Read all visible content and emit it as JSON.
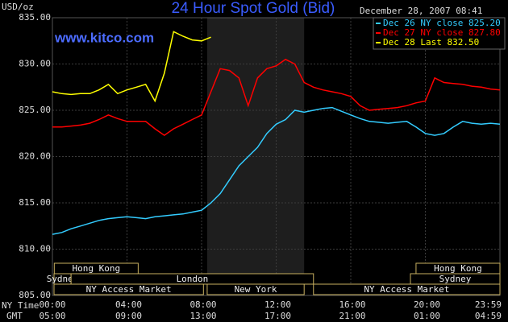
{
  "chart_data": {
    "type": "line",
    "title": "24 Hour Spot Gold (Bid)",
    "ylabel": "USD/oz",
    "timestamp": "December 28, 2007 08:41",
    "watermark": "www.kitco.com",
    "x_axis_names": [
      "NY Time",
      "GMT"
    ],
    "x": [
      0,
      0.5,
      1,
      1.5,
      2,
      2.5,
      3,
      3.5,
      4,
      4.5,
      5,
      5.5,
      6,
      6.5,
      7,
      7.5,
      8,
      8.5,
      9,
      9.5,
      10,
      10.5,
      11,
      11.5,
      12,
      12.5,
      13,
      13.5,
      14,
      14.5,
      15,
      15.5,
      16,
      16.5,
      17,
      17.5,
      18,
      18.5,
      19,
      19.5,
      20,
      20.5,
      21,
      21.5,
      22,
      22.5,
      23,
      23.5,
      24
    ],
    "xlim": [
      0,
      24
    ],
    "xticks": [
      {
        "value": 0,
        "label": "00:00"
      },
      {
        "value": 4,
        "label": "04:00"
      },
      {
        "value": 8,
        "label": "08:00"
      },
      {
        "value": 12,
        "label": "12:00"
      },
      {
        "value": 16,
        "label": "16:00"
      },
      {
        "value": 20,
        "label": "20:00"
      },
      {
        "value": 24,
        "label": "23:59"
      }
    ],
    "x2_labels": [
      "05:00",
      "09:00",
      "13:00",
      "17:00",
      "21:00",
      "01:00",
      "04:59"
    ],
    "ylim": [
      805,
      835
    ],
    "yticks": [
      {
        "value": 805,
        "label": "805.00"
      },
      {
        "value": 810,
        "label": "810.00"
      },
      {
        "value": 815,
        "label": "815.00"
      },
      {
        "value": 820,
        "label": "820.00"
      },
      {
        "value": 825,
        "label": "825.00"
      },
      {
        "value": 830,
        "label": "830.00"
      },
      {
        "value": 835,
        "label": "835.00"
      }
    ],
    "grid": true,
    "shade_xlim": [
      8.3,
      13.5
    ],
    "series": [
      {
        "name": "Dec 26 NY close 825.20",
        "color": "#33ccff",
        "values": [
          811.6,
          811.8,
          812.2,
          812.5,
          812.8,
          813.1,
          813.3,
          813.4,
          813.5,
          813.4,
          813.3,
          813.5,
          813.6,
          813.7,
          813.8,
          814.0,
          814.2,
          815.0,
          816.0,
          817.5,
          819.0,
          820.0,
          821.0,
          822.5,
          823.5,
          824.0,
          825.0,
          824.8,
          825.0,
          825.2,
          825.3,
          824.9,
          824.5,
          824.1,
          823.8,
          823.7,
          823.6,
          823.7,
          823.8,
          823.2,
          822.5,
          822.3,
          822.5,
          823.2,
          823.8,
          823.6,
          823.5,
          823.6,
          823.5
        ]
      },
      {
        "name": "Dec 27 NY close 827.80",
        "color": "#ff0000",
        "values": [
          823.2,
          823.2,
          823.3,
          823.4,
          823.6,
          824.0,
          824.5,
          824.1,
          823.8,
          823.8,
          823.8,
          823.0,
          822.3,
          823.0,
          823.5,
          824.0,
          824.5,
          827.0,
          829.5,
          829.3,
          828.5,
          825.5,
          828.5,
          829.5,
          829.8,
          830.5,
          830.0,
          828.0,
          827.5,
          827.2,
          827.0,
          826.8,
          826.5,
          825.5,
          825.0,
          825.1,
          825.2,
          825.3,
          825.5,
          825.8,
          826.0,
          828.5,
          828.0,
          827.9,
          827.8,
          827.6,
          827.5,
          827.3,
          827.2
        ]
      },
      {
        "name": "Dec 28 Last 832.50",
        "color": "#ffff00",
        "values": [
          827.0,
          826.8,
          826.7,
          826.8,
          826.8,
          827.2,
          827.8,
          826.8,
          827.2,
          827.5,
          827.8,
          826.0,
          829.0,
          833.5,
          833.0,
          832.6,
          832.5,
          832.9,
          null,
          null,
          null,
          null,
          null,
          null,
          null,
          null,
          null,
          null,
          null,
          null,
          null,
          null,
          null,
          null,
          null,
          null,
          null,
          null,
          null,
          null,
          null,
          null,
          null,
          null,
          null,
          null,
          null,
          null,
          null
        ]
      }
    ],
    "session_rows": [
      [
        {
          "name": "Hong Kong",
          "start": 0.1,
          "end": 4.6
        },
        {
          "name": "Hong Kong",
          "start": 19.5,
          "end": 24
        }
      ],
      [
        {
          "name": "Sydney",
          "start": 0,
          "end": 1
        },
        {
          "name": "London",
          "start": 1,
          "end": 14
        },
        {
          "name": "Sydney",
          "start": 19.2,
          "end": 24
        }
      ],
      [
        {
          "name": "NY Access Market",
          "start": 0,
          "end": 8.1
        },
        {
          "name": "New York",
          "start": 8.3,
          "end": 13.5
        },
        {
          "name": "NY Access Market",
          "start": 14,
          "end": 24
        }
      ]
    ]
  }
}
